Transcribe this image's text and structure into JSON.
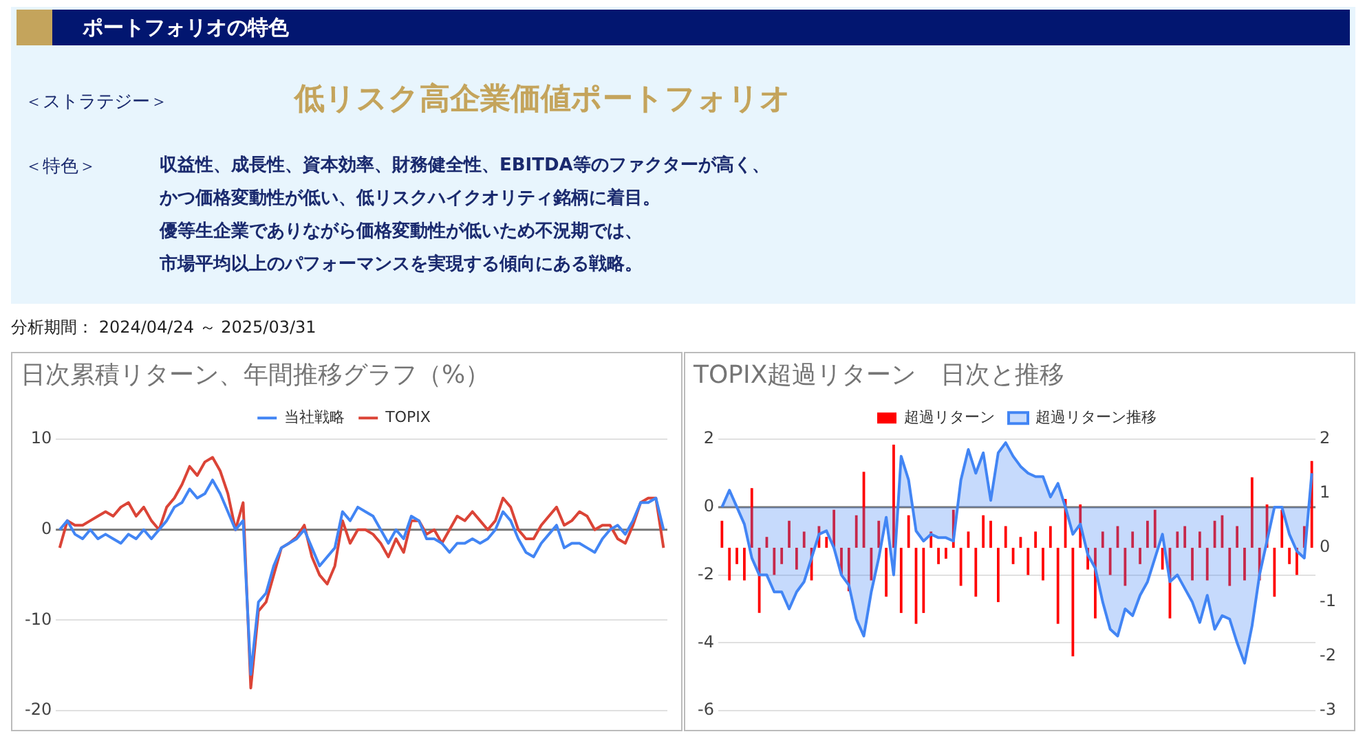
{
  "chart_data": [
    {
      "type": "other",
      "title": "ポートフォリオの特色",
      "annotations": [
        "＜ストラテジー＞",
        "低リスク高企業価値ポートフォリオ",
        "＜特色＞",
        "収益性、成長性、資本効率、財務健全性、EBITDA等のファクターが高く、",
        "かつ価格変動性が低い、低リスクハイクオリティ銘柄に着目。",
        "優等生企業でありながら価格変動性が低いため不況期では、",
        "市場平均以上のパフォーマンスを実現する傾向にある戦略。",
        "分析期間： 2024/04/24 ～ 2025/03/31"
      ]
    },
    {
      "type": "line",
      "title": "日次累積リターン、年間推移グラフ（%）",
      "categories": [
        null,
        null,
        null,
        null,
        null,
        null,
        null,
        null,
        null,
        null,
        null,
        null,
        null,
        null,
        null,
        null,
        null,
        null,
        null,
        null,
        null,
        null,
        null,
        null,
        null,
        null,
        null,
        null,
        null,
        null,
        null,
        null,
        null,
        null,
        null,
        null,
        null,
        null,
        null,
        null,
        null,
        null,
        null,
        null,
        null,
        null,
        null,
        null,
        null,
        null,
        null,
        null,
        null,
        null,
        null,
        null,
        null,
        null,
        null,
        null,
        null,
        null,
        null,
        null,
        null,
        null,
        null,
        null,
        null,
        null,
        null,
        null,
        null,
        null,
        null,
        null,
        null,
        null,
        null,
        null
      ],
      "series": [
        {
          "name": "当社戦略",
          "color": "#4285f4",
          "values": [
            0,
            1,
            -0.5,
            -1,
            0,
            -1,
            -0.5,
            -1,
            -1.5,
            -0.5,
            -1,
            0,
            -1,
            0,
            1,
            2.5,
            3,
            4.5,
            3.5,
            4,
            5.5,
            4,
            2,
            0,
            1,
            -16,
            -8,
            -7,
            -4,
            -2,
            -1.5,
            -1,
            0,
            -2,
            -4,
            -3,
            -2,
            2,
            1,
            2.5,
            2,
            1.5,
            0,
            -1.5,
            0,
            -1,
            1.5,
            1,
            -1,
            -1,
            -1.5,
            -2.5,
            -1.5,
            -1.5,
            -1,
            -1.5,
            -1,
            0,
            2,
            1,
            -1,
            -2.5,
            -3,
            -1.5,
            -0.5,
            0.5,
            -2,
            -1.5,
            -1.5,
            -2,
            -2.5,
            -1,
            0,
            0.5,
            -0.5,
            1,
            3,
            3,
            3.5,
            0
          ]
        },
        {
          "name": "TOPIX",
          "color": "#db4437",
          "values": [
            -2,
            1,
            0.5,
            0.5,
            1,
            1.5,
            2,
            1.5,
            2.5,
            3,
            1.5,
            2.5,
            1,
            0,
            2.5,
            3.5,
            5,
            7,
            6,
            7.5,
            8,
            6.5,
            4,
            0,
            3,
            -17.5,
            -9,
            -8,
            -5,
            -2,
            -1.5,
            -0.8,
            0.5,
            -3,
            -5,
            -6,
            -4,
            1,
            -1.5,
            0,
            0,
            -0.5,
            -1.5,
            -3,
            -1,
            -2.5,
            1,
            1,
            -0.5,
            0,
            -1.5,
            0,
            1.5,
            1,
            2,
            1,
            0,
            1,
            3.5,
            2.5,
            0,
            -1,
            -1,
            0.5,
            1.5,
            2.5,
            0.5,
            1,
            2,
            1.5,
            0,
            0.5,
            0.5,
            -1,
            -1.5,
            0.5,
            3,
            3.5,
            3.5,
            -2
          ]
        }
      ],
      "ylim": [
        -20,
        10
      ],
      "yticks": [
        -20,
        -10,
        0,
        10
      ],
      "grid": "y",
      "legend": "top",
      "marker": "none",
      "ref_lines": [
        {
          "axis": "y",
          "value": 0,
          "color": "#757575"
        }
      ]
    },
    {
      "type": "bar",
      "title": "TOPIX超過リターン　日次と推移",
      "categories": [
        null,
        null,
        null,
        null,
        null,
        null,
        null,
        null,
        null,
        null,
        null,
        null,
        null,
        null,
        null,
        null,
        null,
        null,
        null,
        null,
        null,
        null,
        null,
        null,
        null,
        null,
        null,
        null,
        null,
        null,
        null,
        null,
        null,
        null,
        null,
        null,
        null,
        null,
        null,
        null,
        null,
        null,
        null,
        null,
        null,
        null,
        null,
        null,
        null,
        null,
        null,
        null,
        null,
        null,
        null,
        null,
        null,
        null,
        null,
        null,
        null,
        null,
        null,
        null,
        null,
        null,
        null,
        null,
        null,
        null,
        null,
        null,
        null,
        null,
        null,
        null,
        null,
        null,
        null,
        null
      ],
      "series": [
        {
          "name": "超過リターン",
          "type": "bar",
          "axis": "y2",
          "color": "#ff0000",
          "values": [
            0.5,
            -0.6,
            -0.3,
            -0.6,
            1.1,
            -1.2,
            0.2,
            -0.5,
            -0.3,
            0.5,
            -0.4,
            0.3,
            -0.6,
            0.4,
            0.2,
            0.7,
            -0.5,
            -0.8,
            0.6,
            1.4,
            -0.6,
            0.5,
            -0.9,
            1.9,
            -1.2,
            0.6,
            -1.4,
            -1.2,
            0.3,
            -0.3,
            -0.2,
            0.7,
            -0.7,
            0.3,
            -0.9,
            0.6,
            0.5,
            -1,
            0.4,
            -0.3,
            0.2,
            -0.5,
            0.3,
            -0.6,
            0.4,
            -1.4,
            0.9,
            -2,
            0.8,
            -0.4,
            -1.3,
            0.3,
            -0.5,
            0.4,
            -0.7,
            0.3,
            -0.3,
            0.5,
            0.7,
            -0.4,
            -1.3,
            0.3,
            0.4,
            -0.6,
            0.3,
            -0.6,
            0.5,
            0.6,
            -0.7,
            0.4,
            -0.6,
            1.3,
            -0.6,
            0.8,
            -0.9,
            0.7,
            -0.3,
            -0.5,
            0.4,
            1.6
          ]
        },
        {
          "name": "超過リターン推移",
          "type": "area",
          "color": "#4285f4",
          "values": [
            0,
            0.5,
            0,
            -0.5,
            -1.5,
            -2,
            -2,
            -2.5,
            -2.5,
            -3,
            -2.5,
            -2.2,
            -1.5,
            -0.8,
            -0.7,
            -1.2,
            -2,
            -2.3,
            -3.3,
            -3.8,
            -2.5,
            -1.5,
            -0.3,
            -2,
            1.5,
            0.8,
            -0.7,
            -1,
            -0.8,
            -0.9,
            -0.9,
            -1,
            0.8,
            1.7,
            1,
            1.6,
            0.2,
            1.6,
            1.9,
            1.5,
            1.2,
            1,
            0.9,
            0.9,
            0.3,
            0.7,
            0,
            -0.8,
            -0.5,
            -1.4,
            -1.8,
            -2.8,
            -3.6,
            -3.8,
            -3,
            -3.2,
            -2.6,
            -2.2,
            -1.5,
            -0.8,
            -2.2,
            -2,
            -2.4,
            -2.8,
            -3.4,
            -2.6,
            -3.6,
            -3.2,
            -3.3,
            -4,
            -4.6,
            -3.5,
            -2,
            -1,
            0,
            0,
            -0.8,
            -1.3,
            -1.5,
            1
          ]
        }
      ],
      "ylim": [
        -6,
        2
      ],
      "yticks": [
        -6,
        -4,
        -2,
        0,
        2
      ],
      "y2lim": [
        -3,
        2
      ],
      "y2ticks": [
        -3,
        -2,
        -1,
        0,
        1,
        2
      ],
      "grid": "y",
      "legend": "top",
      "marker": "none",
      "ref_lines": [
        {
          "axis": "y",
          "value": 0,
          "color": "#757575"
        }
      ]
    }
  ]
}
